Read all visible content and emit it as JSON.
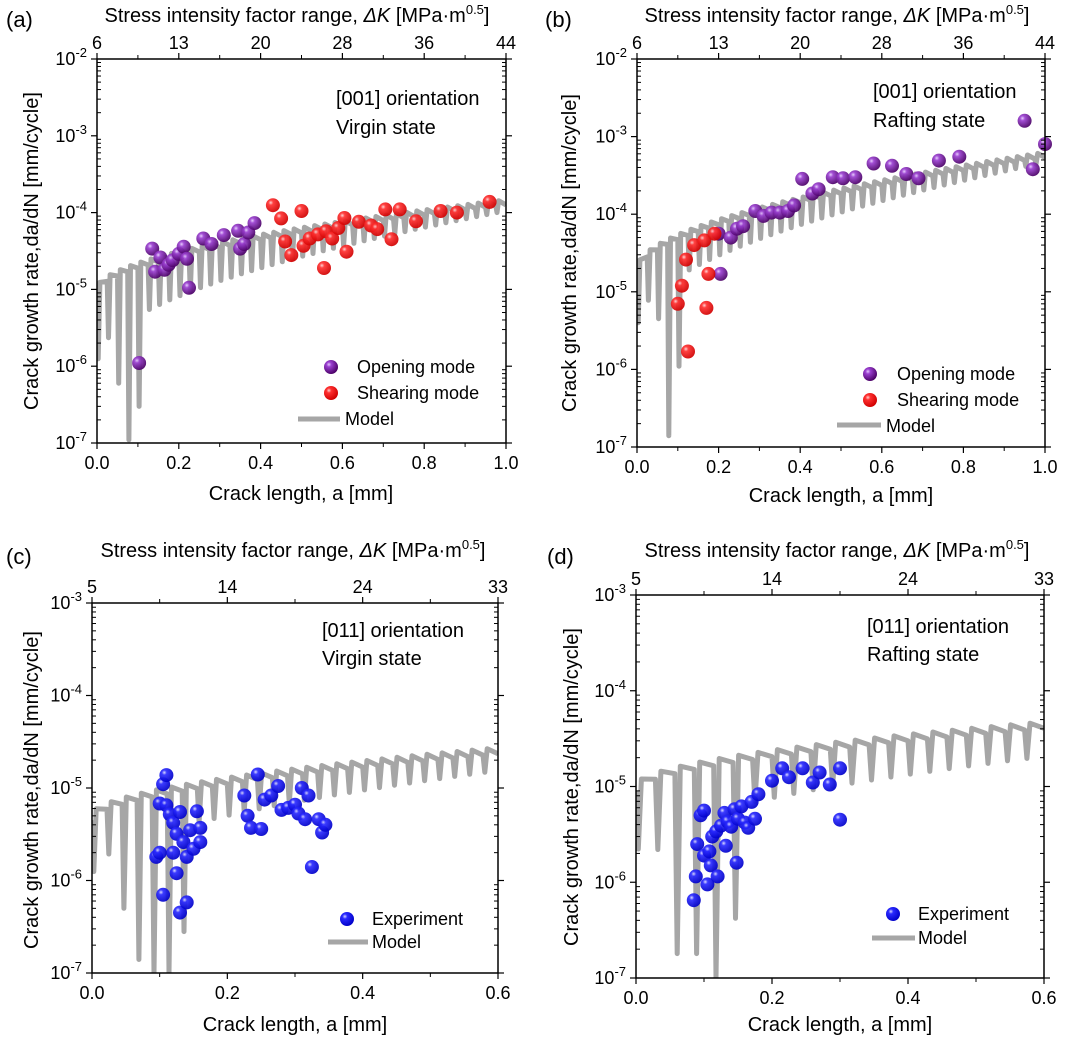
{
  "figure": {
    "common": {
      "top_axis_title": "Stress intensity factor range, ",
      "top_axis_symbol": "ΔK",
      "top_axis_unit": " [MPa·m",
      "top_axis_exp": "0.5",
      "top_axis_close": "]",
      "ylabel": "Crack growth rate,da/dN [mm/cycle]",
      "xlabel": "Crack length, a [mm]",
      "legend_model": "Model"
    },
    "colors": {
      "opening": "#6a0a8c",
      "shearing": "#ff1010",
      "experiment": "#1010ff",
      "model": "#a6a6a6",
      "axis": "#000000"
    }
  },
  "chart_data": [
    {
      "id": "a",
      "type": "scatter",
      "panel_label": "(a)",
      "title_line1": "[001] orientation",
      "title_line2": "Virgin state",
      "xlabel": "Crack length, a [mm]",
      "ylabel": "Crack growth rate,da/dN [mm/cycle]",
      "xlim": [
        0,
        1.0
      ],
      "yscale": "log",
      "ylim": [
        1e-07,
        0.01
      ],
      "xticks": [
        0.0,
        0.2,
        0.4,
        0.6,
        0.8,
        1.0
      ],
      "xtick_labels": [
        "0.0",
        "0.2",
        "0.4",
        "0.6",
        "0.8",
        "1.0"
      ],
      "yticks_exp": [
        -7,
        -6,
        -5,
        -4,
        -3,
        -2
      ],
      "top_ticks": [
        "6",
        "13",
        "20",
        "28",
        "36",
        "44"
      ],
      "legend": [
        "Opening mode",
        "Shearing mode",
        "Model"
      ],
      "legend_position": "bottom-right",
      "model": {
        "a0": 0.0,
        "a1": 1.0,
        "cycles": 40,
        "upper_start": 1e-05,
        "upper_end": 0.00014,
        "deep_dips": [
          [
            0.07,
            1.1e-07
          ],
          [
            0.04,
            6e-07
          ],
          [
            0.095,
            3e-07
          ]
        ],
        "dip_ratio_start": 8,
        "dip_ratio_end": 1.35,
        "band": 0.35
      },
      "series": [
        {
          "name": "Opening mode",
          "points": [
            [
              0.103,
              1.1e-06
            ],
            [
              0.135,
              3.4e-05
            ],
            [
              0.142,
              1.7e-05
            ],
            [
              0.155,
              2.6e-05
            ],
            [
              0.165,
              1.8e-05
            ],
            [
              0.175,
              2.1e-05
            ],
            [
              0.185,
              2.4e-05
            ],
            [
              0.2,
              2.9e-05
            ],
            [
              0.212,
              3.6e-05
            ],
            [
              0.22,
              2.5e-05
            ],
            [
              0.225,
              1.05e-05
            ],
            [
              0.26,
              4.6e-05
            ],
            [
              0.28,
              3.9e-05
            ],
            [
              0.31,
              5.1e-05
            ],
            [
              0.345,
              5.8e-05
            ],
            [
              0.35,
              3.4e-05
            ],
            [
              0.36,
              3.9e-05
            ],
            [
              0.37,
              5.5e-05
            ],
            [
              0.385,
              7.3e-05
            ]
          ]
        },
        {
          "name": "Shearing mode",
          "points": [
            [
              0.43,
              0.000125
            ],
            [
              0.45,
              8.4e-05
            ],
            [
              0.46,
              4.2e-05
            ],
            [
              0.475,
              2.8e-05
            ],
            [
              0.5,
              0.000105
            ],
            [
              0.505,
              3.7e-05
            ],
            [
              0.52,
              4.6e-05
            ],
            [
              0.54,
              5.2e-05
            ],
            [
              0.555,
              1.9e-05
            ],
            [
              0.56,
              5.7e-05
            ],
            [
              0.575,
              4.6e-05
            ],
            [
              0.59,
              6.3e-05
            ],
            [
              0.61,
              3.1e-05
            ],
            [
              0.605,
              8.5e-05
            ],
            [
              0.64,
              7.6e-05
            ],
            [
              0.67,
              6.8e-05
            ],
            [
              0.685,
              6.1e-05
            ],
            [
              0.705,
              0.00011
            ],
            [
              0.72,
              4.5e-05
            ],
            [
              0.74,
              0.00011
            ],
            [
              0.78,
              7.7e-05
            ],
            [
              0.84,
              0.000105
            ],
            [
              0.88,
              0.0001
            ],
            [
              0.96,
              0.000138
            ]
          ]
        }
      ]
    },
    {
      "id": "b",
      "type": "scatter",
      "panel_label": "(b)",
      "title_line1": "[001] orientation",
      "title_line2": "Rafting state",
      "xlabel": "Crack length, a [mm]",
      "ylabel": "Crack growth rate,da/dN [mm/cycle]",
      "xlim": [
        0,
        1.0
      ],
      "yscale": "log",
      "ylim": [
        1e-07,
        0.01
      ],
      "xticks": [
        0.0,
        0.2,
        0.4,
        0.6,
        0.8,
        1.0
      ],
      "xtick_labels": [
        "0.0",
        "0.2",
        "0.4",
        "0.6",
        "0.8",
        "1.0"
      ],
      "yticks_exp": [
        -7,
        -6,
        -5,
        -4,
        -3,
        -2
      ],
      "top_ticks": [
        "6",
        "13",
        "20",
        "28",
        "36",
        "44"
      ],
      "legend": [
        "Opening mode",
        "Shearing mode",
        "Model"
      ],
      "legend_position": "bottom-right",
      "model": {
        "a0": 0.0,
        "a1": 1.0,
        "cycles": 40,
        "upper_start": 2e-05,
        "upper_end": 0.0006,
        "deep_dips": [
          [
            0.065,
            1.4e-07
          ],
          [
            0.1,
            1.1e-06
          ],
          [
            0.04,
            4.5e-06
          ]
        ],
        "dip_ratio_start": 5,
        "dip_ratio_end": 1.3,
        "band": 0.35
      },
      "series": [
        {
          "name": "Opening mode",
          "points": [
            [
              0.205,
              1.7e-05
            ],
            [
              0.2,
              5.6e-05
            ],
            [
              0.23,
              5e-05
            ],
            [
              0.245,
              6.5e-05
            ],
            [
              0.26,
              7e-05
            ],
            [
              0.29,
              0.00011
            ],
            [
              0.31,
              9.5e-05
            ],
            [
              0.33,
              0.000105
            ],
            [
              0.35,
              0.000105
            ],
            [
              0.37,
              0.00011
            ],
            [
              0.385,
              0.00013
            ],
            [
              0.405,
              0.000285
            ],
            [
              0.43,
              0.000185
            ],
            [
              0.445,
              0.00021
            ],
            [
              0.48,
              0.0003
            ],
            [
              0.505,
              0.00029
            ],
            [
              0.535,
              0.0003
            ],
            [
              0.58,
              0.00045
            ],
            [
              0.625,
              0.00042
            ],
            [
              0.66,
              0.00033
            ],
            [
              0.69,
              0.00029
            ],
            [
              0.74,
              0.00049
            ],
            [
              0.79,
              0.00055
            ],
            [
              0.95,
              0.0016
            ],
            [
              0.97,
              0.00038
            ],
            [
              1.0,
              0.0008
            ]
          ]
        },
        {
          "name": "Shearing mode",
          "points": [
            [
              0.125,
              1.7e-06
            ],
            [
              0.1,
              7e-06
            ],
            [
              0.11,
              1.2e-05
            ],
            [
              0.12,
              2.6e-05
            ],
            [
              0.17,
              6.2e-06
            ],
            [
              0.175,
              1.7e-05
            ],
            [
              0.14,
              4e-05
            ],
            [
              0.165,
              4.6e-05
            ],
            [
              0.19,
              5.6e-05
            ]
          ]
        }
      ]
    },
    {
      "id": "c",
      "type": "scatter",
      "panel_label": "(c)",
      "title_line1": "[011] orientation",
      "title_line2": "Virgin state",
      "xlabel": "Crack length, a [mm]",
      "ylabel": "Crack growth rate,da/dN [mm/cycle]",
      "xlim": [
        0,
        0.6
      ],
      "yscale": "log",
      "ylim": [
        1e-07,
        0.001
      ],
      "xticks": [
        0.0,
        0.2,
        0.4,
        0.6
      ],
      "xtick_labels": [
        "0.0",
        "0.2",
        "0.4",
        "0.6"
      ],
      "yticks_exp": [
        -7,
        -6,
        -5,
        -4,
        -3
      ],
      "top_ticks": [
        "5",
        "14",
        "24",
        "33"
      ],
      "legend": [
        "Experiment",
        "Model"
      ],
      "legend_position": "bottom-right",
      "model": {
        "a0": 0.0,
        "a1": 0.6,
        "cycles": 27,
        "upper_start": 5e-06,
        "upper_end": 2.6e-05,
        "deep_dips": [
          [
            0.09,
            1e-07
          ],
          [
            0.115,
            1e-07
          ],
          [
            0.07,
            1.4e-07
          ],
          [
            0.045,
            5e-07
          ],
          [
            0.135,
            2.8e-07
          ]
        ],
        "dip_ratio_start": 4,
        "dip_ratio_end": 1.7,
        "band": 0.22
      },
      "series": [
        {
          "name": "Experiment",
          "points": [
            [
              0.095,
              1.8e-06
            ],
            [
              0.1,
              6.8e-06
            ],
            [
              0.105,
              1.1e-05
            ],
            [
              0.11,
              1.38e-05
            ],
            [
              0.11,
              6.5e-06
            ],
            [
              0.115,
              5.2e-06
            ],
            [
              0.12,
              4.2e-06
            ],
            [
              0.12,
              2e-06
            ],
            [
              0.125,
              3.2e-06
            ],
            [
              0.125,
              1.2e-06
            ],
            [
              0.13,
              5.5e-06
            ],
            [
              0.13,
              4.5e-07
            ],
            [
              0.135,
              2.6e-06
            ],
            [
              0.14,
              5.8e-07
            ],
            [
              0.14,
              1.8e-06
            ],
            [
              0.145,
              3.5e-06
            ],
            [
              0.15,
              2.2e-06
            ],
            [
              0.155,
              5.6e-06
            ],
            [
              0.16,
              2.6e-06
            ],
            [
              0.16,
              3.7e-06
            ],
            [
              0.1,
              2e-06
            ],
            [
              0.105,
              7e-07
            ],
            [
              0.225,
              8.3e-06
            ],
            [
              0.23,
              5e-06
            ],
            [
              0.235,
              3.7e-06
            ],
            [
              0.245,
              1.4e-05
            ],
            [
              0.25,
              3.6e-06
            ],
            [
              0.255,
              7.5e-06
            ],
            [
              0.265,
              8.3e-06
            ],
            [
              0.275,
              1.05e-05
            ],
            [
              0.28,
              5.8e-06
            ],
            [
              0.29,
              6.1e-06
            ],
            [
              0.3,
              6.6e-06
            ],
            [
              0.305,
              5.3e-06
            ],
            [
              0.31,
              1e-05
            ],
            [
              0.315,
              4.6e-06
            ],
            [
              0.32,
              8.3e-06
            ],
            [
              0.325,
              1.4e-06
            ],
            [
              0.335,
              4.6e-06
            ],
            [
              0.34,
              3.3e-06
            ],
            [
              0.345,
              4e-06
            ]
          ]
        }
      ]
    },
    {
      "id": "d",
      "type": "scatter",
      "panel_label": "(d)",
      "title_line1": "[011] orientation",
      "title_line2": "Rafting state",
      "xlabel": "Crack length, a [mm]",
      "ylabel": "Crack growth rate,da/dN [mm/cycle]",
      "xlim": [
        0,
        0.6
      ],
      "yscale": "log",
      "ylim": [
        1e-07,
        0.001
      ],
      "xticks": [
        0.0,
        0.2,
        0.4,
        0.6
      ],
      "xtick_labels": [
        "0.0",
        "0.2",
        "0.4",
        "0.6"
      ],
      "yticks_exp": [
        -7,
        -6,
        -5,
        -4,
        -3
      ],
      "top_ticks": [
        "5",
        "14",
        "24",
        "33"
      ],
      "legend": [
        "Experiment",
        "Model"
      ],
      "legend_position": "bottom-right",
      "model": {
        "a0": 0.0,
        "a1": 0.6,
        "cycles": 21,
        "upper_start": 1e-05,
        "upper_end": 4.5e-05,
        "deep_dips": [
          [
            0.105,
            1e-07
          ],
          [
            0.07,
            1.8e-07
          ],
          [
            0.135,
            4.2e-07
          ],
          [
            0.04,
            2.2e-06
          ]
        ],
        "dip_ratio_start": 4.5,
        "dip_ratio_end": 2.2,
        "band": 0.22
      },
      "series": [
        {
          "name": "Experiment",
          "points": [
            [
              0.085,
              6.5e-07
            ],
            [
              0.088,
              1.15e-06
            ],
            [
              0.09,
              2.5e-06
            ],
            [
              0.095,
              5e-06
            ],
            [
              0.1,
              5.6e-06
            ],
            [
              0.1,
              1.9e-06
            ],
            [
              0.105,
              9.5e-07
            ],
            [
              0.108,
              2.1e-06
            ],
            [
              0.11,
              1.5e-06
            ],
            [
              0.112,
              3e-06
            ],
            [
              0.118,
              3.4e-06
            ],
            [
              0.12,
              1.15e-06
            ],
            [
              0.125,
              3.9e-06
            ],
            [
              0.13,
              5.3e-06
            ],
            [
              0.132,
              2.4e-06
            ],
            [
              0.135,
              4.3e-06
            ],
            [
              0.14,
              3.8e-06
            ],
            [
              0.145,
              5.8e-06
            ],
            [
              0.148,
              1.6e-06
            ],
            [
              0.15,
              4.6e-06
            ],
            [
              0.155,
              6.2e-06
            ],
            [
              0.16,
              4.2e-06
            ],
            [
              0.165,
              3.7e-06
            ],
            [
              0.17,
              6.9e-06
            ],
            [
              0.175,
              4.6e-06
            ],
            [
              0.18,
              8.3e-06
            ],
            [
              0.2,
              1.15e-05
            ],
            [
              0.215,
              1.55e-05
            ],
            [
              0.225,
              1.25e-05
            ],
            [
              0.245,
              1.55e-05
            ],
            [
              0.26,
              1.1e-05
            ],
            [
              0.27,
              1.4e-05
            ],
            [
              0.285,
              1.05e-05
            ],
            [
              0.3,
              1.55e-05
            ],
            [
              0.3,
              4.5e-06
            ]
          ]
        }
      ]
    }
  ]
}
